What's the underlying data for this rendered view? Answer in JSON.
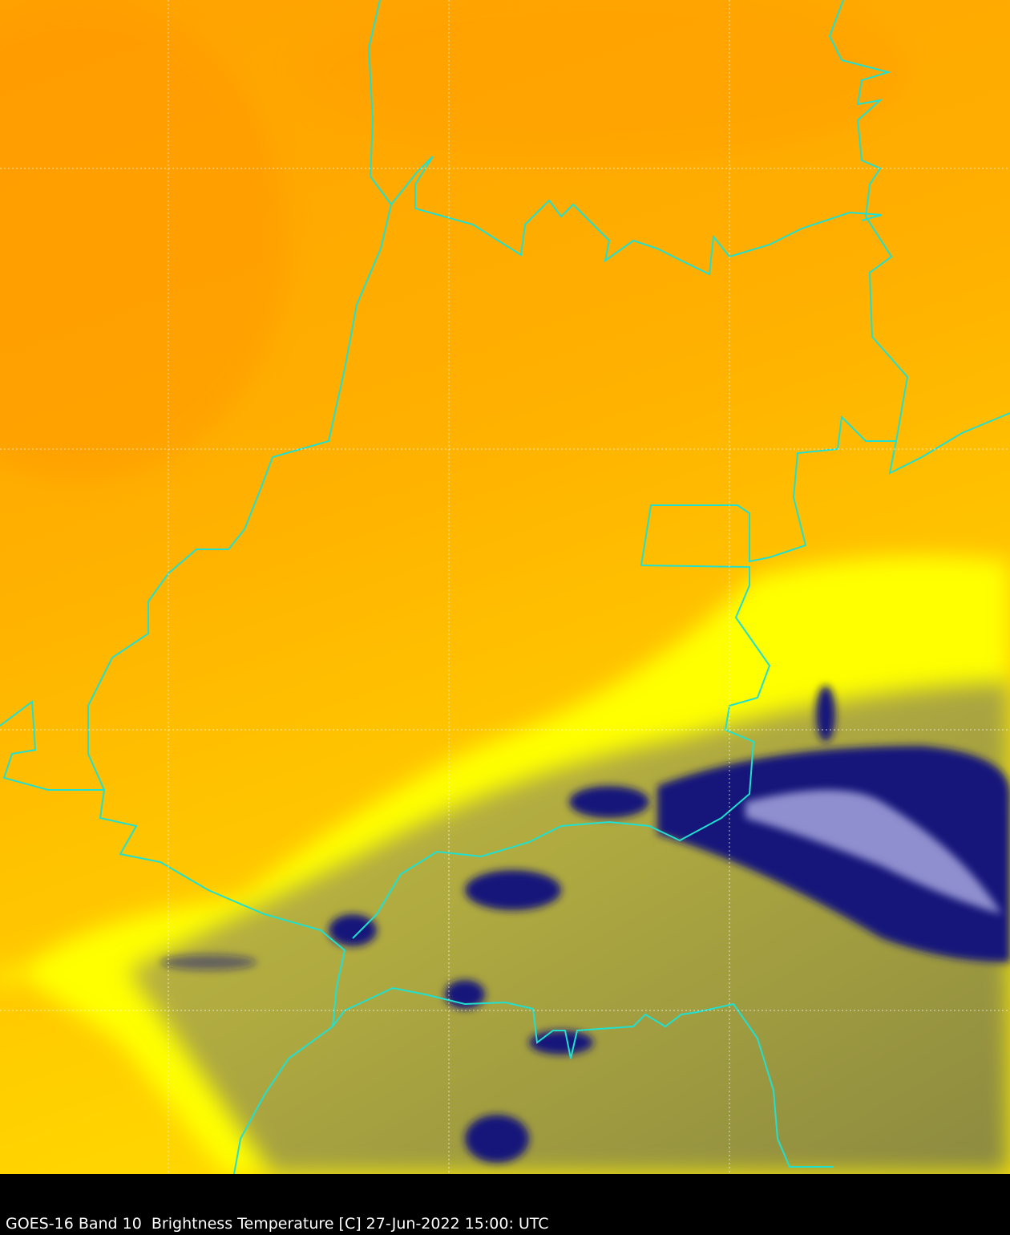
{
  "caption": "GOES-16 Band 10  Brightness Temperature [C] 27-Jun-2022 15:00: UTC",
  "colors": {
    "warm": "#ffa000",
    "mid": "#ffc400",
    "yellow": "#ffff00",
    "olive": "#a8a838",
    "cold": "#101078",
    "coldest": "#c8c8f0",
    "borders": "#20e0d0",
    "grid": "#ffffff"
  }
}
